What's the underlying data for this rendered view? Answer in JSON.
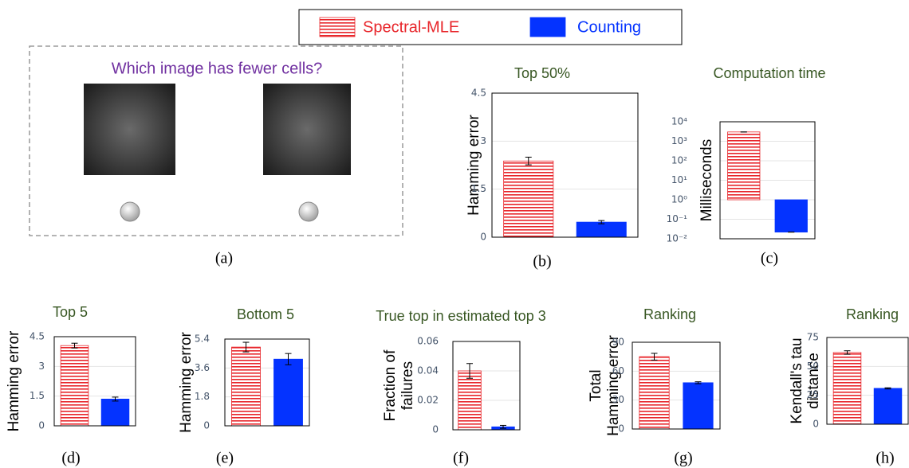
{
  "legend": [
    {
      "name": "Spectral-MLE",
      "color": "#e8262b",
      "hatch": true
    },
    {
      "name": "Counting",
      "color": "#0433ff",
      "hatch": false
    }
  ],
  "illustration": {
    "question": "Which image has fewer cells?",
    "caption": "(a)"
  },
  "chart_data": [
    {
      "type": "bar",
      "title": "Top 50%",
      "ylabel": [
        "Hamming error"
      ],
      "values": [
        2.38,
        0.47
      ],
      "errors": [
        0.12,
        0.05
      ],
      "ylim": [
        0,
        4.5
      ],
      "yticks": [
        0,
        1.5,
        3,
        4.5
      ],
      "grid": true,
      "log": false,
      "caption": "(b)"
    },
    {
      "type": "bar",
      "title": "Computation time",
      "ylabel": [
        "Milliseconds"
      ],
      "values": [
        3000,
        0.022
      ],
      "errors": [
        0,
        0
      ],
      "ylim": [
        0.01,
        10000
      ],
      "yticks": [
        {
          "value": 0.01,
          "label": "10⁻²"
        },
        {
          "value": 0.1,
          "label": "10⁻¹"
        },
        {
          "value": 1,
          "label": "10⁰"
        },
        {
          "value": 10,
          "label": "10¹"
        },
        {
          "value": 100,
          "label": "10²"
        },
        {
          "value": 1000,
          "label": "10³"
        },
        {
          "value": 10000,
          "label": "10⁴"
        }
      ],
      "grid": true,
      "log": true,
      "caption": "(c)"
    },
    {
      "type": "bar",
      "title": "Top 5",
      "ylabel": [
        "Hamming error"
      ],
      "values": [
        4.05,
        1.35
      ],
      "errors": [
        0.12,
        0.1
      ],
      "ylim": [
        0,
        4.5
      ],
      "yticks": [
        0,
        1.5,
        3,
        4.5
      ],
      "grid": true,
      "log": false,
      "caption": "(d)"
    },
    {
      "type": "bar",
      "title": "Bottom 5",
      "ylabel": [
        "Hamming error"
      ],
      "values": [
        4.9,
        4.15
      ],
      "errors": [
        0.3,
        0.35
      ],
      "ylim": [
        0,
        5.4
      ],
      "yticks": [
        0,
        1.8,
        3.6,
        5.4
      ],
      "grid": true,
      "log": false,
      "caption": "(e)"
    },
    {
      "type": "bar",
      "title": "True top in estimated top 3",
      "ylabel": [
        "Fraction of",
        "failures"
      ],
      "values": [
        0.04,
        0.002
      ],
      "errors": [
        0.005,
        0.001
      ],
      "ylim": [
        0,
        0.06
      ],
      "yticks": [
        0,
        0.02,
        0.04,
        0.06
      ],
      "grid": true,
      "log": false,
      "caption": "(f)"
    },
    {
      "type": "bar",
      "title": "Ranking",
      "ylabel": [
        "Total",
        "Hamming error"
      ],
      "values": [
        75,
        48
      ],
      "errors": [
        3.5,
        1
      ],
      "ylim": [
        0,
        90
      ],
      "yticks": [
        0,
        30,
        60,
        90
      ],
      "grid": true,
      "log": false,
      "caption": "(g)"
    },
    {
      "type": "bar",
      "title": "Ranking",
      "ylabel": [
        "Kendall's tau",
        "distance"
      ],
      "values": [
        62,
        31
      ],
      "errors": [
        1.5,
        0.5
      ],
      "ylim": [
        0,
        75
      ],
      "yticks": [
        0,
        25,
        50,
        75
      ],
      "grid": true,
      "log": false,
      "caption": "(h)"
    }
  ]
}
